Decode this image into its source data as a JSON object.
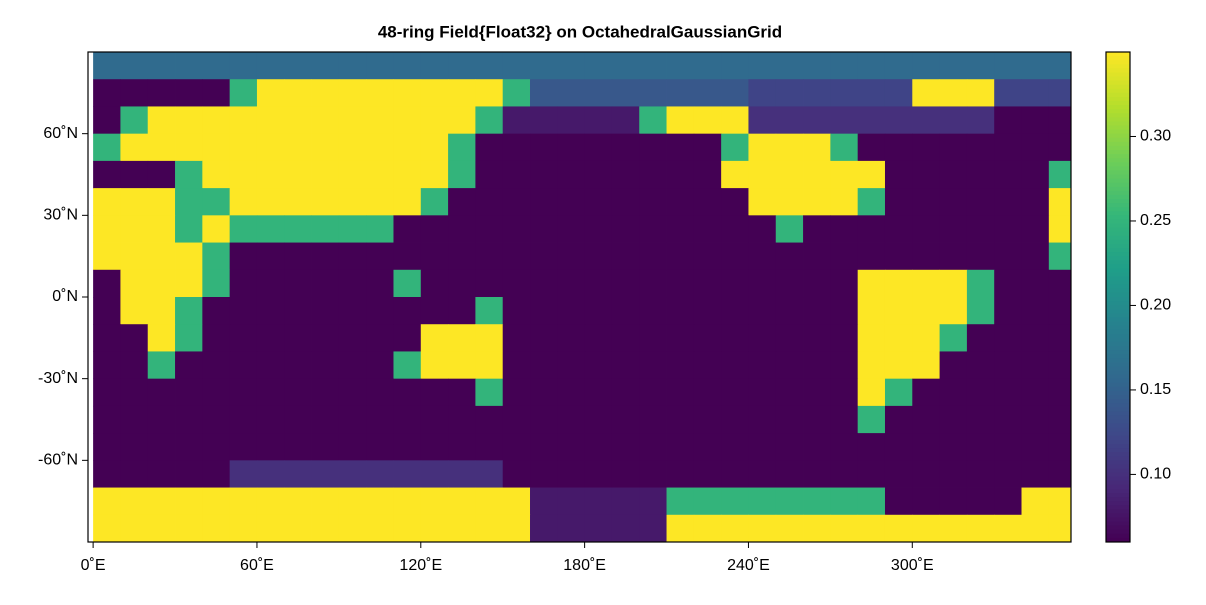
{
  "chart_data": {
    "type": "heatmap",
    "title": "48-ring Field{Float32} on OctahedralGaussianGrid",
    "colormap": "viridis",
    "x": [
      5,
      15,
      25,
      35,
      45,
      55,
      65,
      75,
      85,
      95,
      105,
      115,
      125,
      135,
      145,
      155,
      165,
      175,
      185,
      195,
      205,
      215,
      225,
      235,
      245,
      255,
      265,
      275,
      285,
      295,
      305,
      315,
      325,
      335,
      345,
      355
    ],
    "y": [
      85,
      75,
      65,
      55,
      45,
      35,
      25,
      15,
      5,
      -5,
      -15,
      -25,
      -35,
      -45,
      -55,
      -65,
      -75,
      -85
    ],
    "z": [
      [
        0.16,
        0.16,
        0.16,
        0.16,
        0.16,
        0.16,
        0.16,
        0.16,
        0.16,
        0.16,
        0.16,
        0.16,
        0.16,
        0.16,
        0.16,
        0.16,
        0.16,
        0.16,
        0.16,
        0.16,
        0.16,
        0.16,
        0.16,
        0.16,
        0.16,
        0.16,
        0.16,
        0.16,
        0.16,
        0.16,
        0.16,
        0.16,
        0.16,
        0.16,
        0.16,
        0.16
      ],
      [
        0.06,
        0.06,
        0.06,
        0.06,
        0.06,
        0.25,
        0.35,
        0.35,
        0.35,
        0.35,
        0.35,
        0.35,
        0.35,
        0.35,
        0.35,
        0.25,
        0.14,
        0.14,
        0.14,
        0.14,
        0.14,
        0.14,
        0.14,
        0.14,
        0.12,
        0.12,
        0.12,
        0.12,
        0.12,
        0.12,
        0.35,
        0.35,
        0.35,
        0.12,
        0.12,
        0.12
      ],
      [
        0.06,
        0.25,
        0.35,
        0.35,
        0.35,
        0.35,
        0.35,
        0.35,
        0.35,
        0.35,
        0.35,
        0.35,
        0.35,
        0.35,
        0.25,
        0.08,
        0.08,
        0.08,
        0.08,
        0.08,
        0.25,
        0.35,
        0.35,
        0.35,
        0.1,
        0.1,
        0.1,
        0.1,
        0.1,
        0.1,
        0.1,
        0.1,
        0.1,
        0.06,
        0.06,
        0.06
      ],
      [
        0.25,
        0.35,
        0.35,
        0.35,
        0.35,
        0.35,
        0.35,
        0.35,
        0.35,
        0.35,
        0.35,
        0.35,
        0.35,
        0.25,
        0.06,
        0.06,
        0.06,
        0.06,
        0.06,
        0.06,
        0.06,
        0.06,
        0.06,
        0.25,
        0.35,
        0.35,
        0.35,
        0.25,
        0.06,
        0.06,
        0.06,
        0.06,
        0.06,
        0.06,
        0.06,
        0.06
      ],
      [
        0.06,
        0.06,
        0.06,
        0.25,
        0.35,
        0.35,
        0.35,
        0.35,
        0.35,
        0.35,
        0.35,
        0.35,
        0.35,
        0.25,
        0.06,
        0.06,
        0.06,
        0.06,
        0.06,
        0.06,
        0.06,
        0.06,
        0.06,
        0.35,
        0.35,
        0.35,
        0.35,
        0.35,
        0.35,
        0.06,
        0.06,
        0.06,
        0.06,
        0.06,
        0.06,
        0.25
      ],
      [
        0.35,
        0.35,
        0.35,
        0.25,
        0.25,
        0.35,
        0.35,
        0.35,
        0.35,
        0.35,
        0.35,
        0.35,
        0.25,
        0.06,
        0.06,
        0.06,
        0.06,
        0.06,
        0.06,
        0.06,
        0.06,
        0.06,
        0.06,
        0.06,
        0.35,
        0.35,
        0.35,
        0.35,
        0.25,
        0.06,
        0.06,
        0.06,
        0.06,
        0.06,
        0.06,
        0.35
      ],
      [
        0.35,
        0.35,
        0.35,
        0.25,
        0.35,
        0.25,
        0.25,
        0.25,
        0.25,
        0.25,
        0.25,
        0.06,
        0.06,
        0.06,
        0.06,
        0.06,
        0.06,
        0.06,
        0.06,
        0.06,
        0.06,
        0.06,
        0.06,
        0.06,
        0.06,
        0.25,
        0.06,
        0.06,
        0.06,
        0.06,
        0.06,
        0.06,
        0.06,
        0.06,
        0.06,
        0.35
      ],
      [
        0.35,
        0.35,
        0.35,
        0.35,
        0.25,
        0.06,
        0.06,
        0.06,
        0.06,
        0.06,
        0.06,
        0.06,
        0.06,
        0.06,
        0.06,
        0.06,
        0.06,
        0.06,
        0.06,
        0.06,
        0.06,
        0.06,
        0.06,
        0.06,
        0.06,
        0.06,
        0.06,
        0.06,
        0.06,
        0.06,
        0.06,
        0.06,
        0.06,
        0.06,
        0.06,
        0.25
      ],
      [
        0.06,
        0.35,
        0.35,
        0.35,
        0.25,
        0.06,
        0.06,
        0.06,
        0.06,
        0.06,
        0.06,
        0.25,
        0.06,
        0.06,
        0.06,
        0.06,
        0.06,
        0.06,
        0.06,
        0.06,
        0.06,
        0.06,
        0.06,
        0.06,
        0.06,
        0.06,
        0.06,
        0.06,
        0.35,
        0.35,
        0.35,
        0.35,
        0.25,
        0.06,
        0.06,
        0.06
      ],
      [
        0.06,
        0.35,
        0.35,
        0.25,
        0.06,
        0.06,
        0.06,
        0.06,
        0.06,
        0.06,
        0.06,
        0.06,
        0.06,
        0.06,
        0.25,
        0.06,
        0.06,
        0.06,
        0.06,
        0.06,
        0.06,
        0.06,
        0.06,
        0.06,
        0.06,
        0.06,
        0.06,
        0.06,
        0.35,
        0.35,
        0.35,
        0.35,
        0.25,
        0.06,
        0.06,
        0.06
      ],
      [
        0.06,
        0.06,
        0.35,
        0.25,
        0.06,
        0.06,
        0.06,
        0.06,
        0.06,
        0.06,
        0.06,
        0.06,
        0.35,
        0.35,
        0.35,
        0.06,
        0.06,
        0.06,
        0.06,
        0.06,
        0.06,
        0.06,
        0.06,
        0.06,
        0.06,
        0.06,
        0.06,
        0.06,
        0.35,
        0.35,
        0.35,
        0.25,
        0.06,
        0.06,
        0.06,
        0.06
      ],
      [
        0.06,
        0.06,
        0.25,
        0.06,
        0.06,
        0.06,
        0.06,
        0.06,
        0.06,
        0.06,
        0.06,
        0.25,
        0.35,
        0.35,
        0.35,
        0.06,
        0.06,
        0.06,
        0.06,
        0.06,
        0.06,
        0.06,
        0.06,
        0.06,
        0.06,
        0.06,
        0.06,
        0.06,
        0.35,
        0.35,
        0.35,
        0.06,
        0.06,
        0.06,
        0.06,
        0.06
      ],
      [
        0.06,
        0.06,
        0.06,
        0.06,
        0.06,
        0.06,
        0.06,
        0.06,
        0.06,
        0.06,
        0.06,
        0.06,
        0.06,
        0.06,
        0.25,
        0.06,
        0.06,
        0.06,
        0.06,
        0.06,
        0.06,
        0.06,
        0.06,
        0.06,
        0.06,
        0.06,
        0.06,
        0.06,
        0.35,
        0.25,
        0.06,
        0.06,
        0.06,
        0.06,
        0.06,
        0.06
      ],
      [
        0.06,
        0.06,
        0.06,
        0.06,
        0.06,
        0.06,
        0.06,
        0.06,
        0.06,
        0.06,
        0.06,
        0.06,
        0.06,
        0.06,
        0.06,
        0.06,
        0.06,
        0.06,
        0.06,
        0.06,
        0.06,
        0.06,
        0.06,
        0.06,
        0.06,
        0.06,
        0.06,
        0.06,
        0.25,
        0.06,
        0.06,
        0.06,
        0.06,
        0.06,
        0.06,
        0.06
      ],
      [
        0.06,
        0.06,
        0.06,
        0.06,
        0.06,
        0.06,
        0.06,
        0.06,
        0.06,
        0.06,
        0.06,
        0.06,
        0.06,
        0.06,
        0.06,
        0.06,
        0.06,
        0.06,
        0.06,
        0.06,
        0.06,
        0.06,
        0.06,
        0.06,
        0.06,
        0.06,
        0.06,
        0.06,
        0.06,
        0.06,
        0.06,
        0.06,
        0.06,
        0.06,
        0.06,
        0.06
      ],
      [
        0.06,
        0.06,
        0.06,
        0.06,
        0.06,
        0.1,
        0.1,
        0.1,
        0.1,
        0.1,
        0.1,
        0.1,
        0.1,
        0.1,
        0.1,
        0.06,
        0.06,
        0.06,
        0.06,
        0.06,
        0.06,
        0.06,
        0.06,
        0.06,
        0.06,
        0.06,
        0.06,
        0.06,
        0.06,
        0.06,
        0.06,
        0.06,
        0.06,
        0.06,
        0.06,
        0.06
      ],
      [
        0.35,
        0.35,
        0.35,
        0.35,
        0.35,
        0.35,
        0.35,
        0.35,
        0.35,
        0.35,
        0.35,
        0.35,
        0.35,
        0.35,
        0.35,
        0.35,
        0.08,
        0.08,
        0.08,
        0.08,
        0.08,
        0.25,
        0.25,
        0.25,
        0.25,
        0.25,
        0.25,
        0.25,
        0.25,
        0.06,
        0.06,
        0.06,
        0.06,
        0.06,
        0.35,
        0.35
      ],
      [
        0.35,
        0.35,
        0.35,
        0.35,
        0.35,
        0.35,
        0.35,
        0.35,
        0.35,
        0.35,
        0.35,
        0.35,
        0.35,
        0.35,
        0.35,
        0.35,
        0.08,
        0.08,
        0.08,
        0.08,
        0.08,
        0.35,
        0.35,
        0.35,
        0.35,
        0.35,
        0.35,
        0.35,
        0.35,
        0.35,
        0.35,
        0.35,
        0.35,
        0.35,
        0.35,
        0.35
      ]
    ],
    "xlim": [
      -1.875,
      358.125
    ],
    "ylim": [
      -90,
      90
    ],
    "xticks": [
      {
        "value": 0,
        "label": "0˚E"
      },
      {
        "value": 60,
        "label": "60˚E"
      },
      {
        "value": 120,
        "label": "120˚E"
      },
      {
        "value": 180,
        "label": "180˚E"
      },
      {
        "value": 240,
        "label": "240˚E"
      },
      {
        "value": 300,
        "label": "300˚E"
      }
    ],
    "yticks": [
      {
        "value": -60,
        "label": "-60˚N"
      },
      {
        "value": -30,
        "label": "-30˚N"
      },
      {
        "value": 0,
        "label": "0˚N"
      },
      {
        "value": 30,
        "label": "30˚N"
      },
      {
        "value": 60,
        "label": "60˚N"
      }
    ],
    "clim": [
      0.06,
      0.35
    ],
    "cticks": [
      {
        "value": 0.1,
        "label": "0.10"
      },
      0.15,
      {
        "value": 0.2,
        "label": "0.20"
      },
      0.25,
      {
        "value": 0.3,
        "label": "0.30"
      }
    ]
  }
}
